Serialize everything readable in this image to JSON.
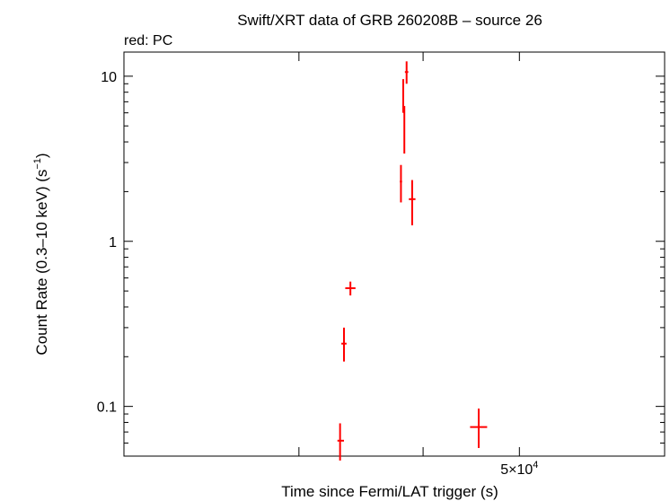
{
  "chart_data": {
    "type": "scatter",
    "title": "Swift/XRT data of GRB 260208B – source 26",
    "subtitle": "red: PC",
    "xlabel": "Time since Fermi/LAT trigger (s)",
    "ylabel": "Count Rate (0.3–10 keV) (s",
    "ylabel_sup": "−1",
    "ylabel_end": ")",
    "x_scale": "log",
    "y_scale": "log",
    "xlim": [
      20000,
      70000
    ],
    "ylim": [
      0.05,
      14
    ],
    "grid": false,
    "x_ticks": [
      {
        "value": 30000,
        "label": ""
      },
      {
        "value": 40000,
        "label": ""
      },
      {
        "value": 50000,
        "label": "5×10",
        "sup": "4"
      }
    ],
    "y_ticks": [
      {
        "value": 0.1,
        "label": "0.1"
      },
      {
        "value": 1,
        "label": "1"
      },
      {
        "value": 10,
        "label": "10"
      }
    ],
    "series": [
      {
        "color": "#ff0000",
        "points": [
          {
            "x": 33000,
            "y": 0.062,
            "xerr": [
              32800,
              33300
            ],
            "yerr": [
              0.047,
              0.079
            ]
          },
          {
            "x": 33300,
            "y": 0.24,
            "xerr": [
              33100,
              33500
            ],
            "yerr": [
              0.187,
              0.3
            ]
          },
          {
            "x": 33800,
            "y": 0.52,
            "xerr": [
              33400,
              34200
            ],
            "yerr": [
              0.47,
              0.57
            ]
          },
          {
            "x": 38000,
            "y": 2.3,
            "xerr": [
              37900,
              38100
            ],
            "yerr": [
              1.72,
              2.9
            ]
          },
          {
            "x": 38200,
            "y": 7.6,
            "xerr": [
              38130,
              38270
            ],
            "yerr": [
              6.0,
              9.6
            ]
          },
          {
            "x": 38300,
            "y": 5.0,
            "xerr": [
              38250,
              38350
            ],
            "yerr": [
              3.4,
              6.6
            ]
          },
          {
            "x": 38500,
            "y": 10.6,
            "xerr": [
              38350,
              38650
            ],
            "yerr": [
              9.0,
              12.3
            ]
          },
          {
            "x": 39000,
            "y": 1.8,
            "xerr": [
              38700,
              39300
            ],
            "yerr": [
              1.25,
              2.35
            ]
          },
          {
            "x": 45500,
            "y": 0.075,
            "xerr": [
              44600,
              46400
            ],
            "yerr": [
              0.056,
              0.097
            ]
          }
        ]
      }
    ]
  }
}
